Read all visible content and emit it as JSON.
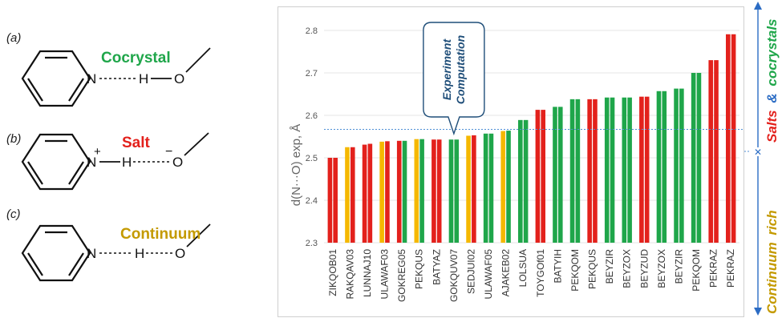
{
  "schemes": [
    {
      "tag": "(a)",
      "label": "Cocrystal",
      "color": "#1fa64a",
      "atoms": {
        "n": "N",
        "h": "H",
        "o": "O"
      }
    },
    {
      "tag": "(b)",
      "label": "Salt",
      "color": "#e3211c",
      "atoms": {
        "n": "N",
        "h": "H",
        "o": "O",
        "plus": "+",
        "minus": "−"
      }
    },
    {
      "tag": "(c)",
      "label": "Continuum",
      "color": "#c49a00",
      "atoms": {
        "n": "N",
        "h": "H",
        "o": "O"
      }
    }
  ],
  "colors": {
    "salt": "#e3211c",
    "cocrystal": "#1fa64a",
    "continuum": "#f5b800",
    "accent": "#2b6cc4",
    "threshold": "#4f8fd6",
    "callout_text": "#1f4e79"
  },
  "chart_data": {
    "type": "bar",
    "ylabel": "d(N···O) exp, Å",
    "ylim": [
      2.3,
      2.8
    ],
    "yticks": [
      "2.3",
      "2.4",
      "2.5",
      "2.6",
      "2.7",
      "2.8"
    ],
    "threshold": 2.567,
    "callout": {
      "line1": "Experiment",
      "line2": "Computation"
    },
    "categories": [
      "ZIKQOB01",
      "RAKQAV03",
      "LUNNAJ10",
      "ULAWAF03",
      "GOKREG05",
      "PEKQUS",
      "BATYAZ",
      "GOKQUV07",
      "SEDJUI02",
      "ULAWAF05",
      "AJAKEB02",
      "LOLSUA",
      "TOYGOf01",
      "BATYIH",
      "PEKQOM",
      "PEKQUS",
      "BEYZIR",
      "BEYZOX",
      "BEYZUD",
      "BEYZOX",
      "BEYZIR",
      "PEKQOM",
      "PEKRAZ",
      "PEKRAZ"
    ],
    "series": [
      {
        "values": [
          2.5,
          2.525,
          2.531,
          2.538,
          2.54,
          2.544,
          2.543,
          2.543,
          2.552,
          2.557,
          2.563,
          2.589,
          2.613,
          2.62,
          2.638,
          2.638,
          2.642,
          2.642,
          2.644,
          2.657,
          2.663,
          2.7,
          2.73,
          2.791
        ],
        "colors": [
          "salt",
          "continuum",
          "salt",
          "continuum",
          "salt",
          "continuum",
          "salt",
          "cocrystal",
          "continuum",
          "cocrystal",
          "continuum",
          "cocrystal",
          "salt",
          "cocrystal",
          "cocrystal",
          "salt",
          "cocrystal",
          "cocrystal",
          "salt",
          "cocrystal",
          "cocrystal",
          "cocrystal",
          "salt",
          "salt"
        ]
      },
      {
        "values": [
          2.5,
          2.525,
          2.533,
          2.539,
          2.54,
          2.544,
          2.543,
          2.543,
          2.553,
          2.557,
          2.564,
          2.589,
          2.613,
          2.62,
          2.638,
          2.638,
          2.642,
          2.642,
          2.644,
          2.657,
          2.663,
          2.7,
          2.73,
          2.791
        ],
        "colors": [
          "salt",
          "salt",
          "salt",
          "salt",
          "cocrystal",
          "cocrystal",
          "salt",
          "cocrystal",
          "salt",
          "cocrystal",
          "cocrystal",
          "cocrystal",
          "salt",
          "cocrystal",
          "cocrystal",
          "salt",
          "cocrystal",
          "cocrystal",
          "salt",
          "cocrystal",
          "cocrystal",
          "cocrystal",
          "salt",
          "salt"
        ]
      }
    ]
  },
  "side_labels": {
    "salts": "Salts",
    "amp": "&",
    "cocrystals": "cocrystals",
    "continuum": "Continuum",
    "rich": "rich"
  }
}
